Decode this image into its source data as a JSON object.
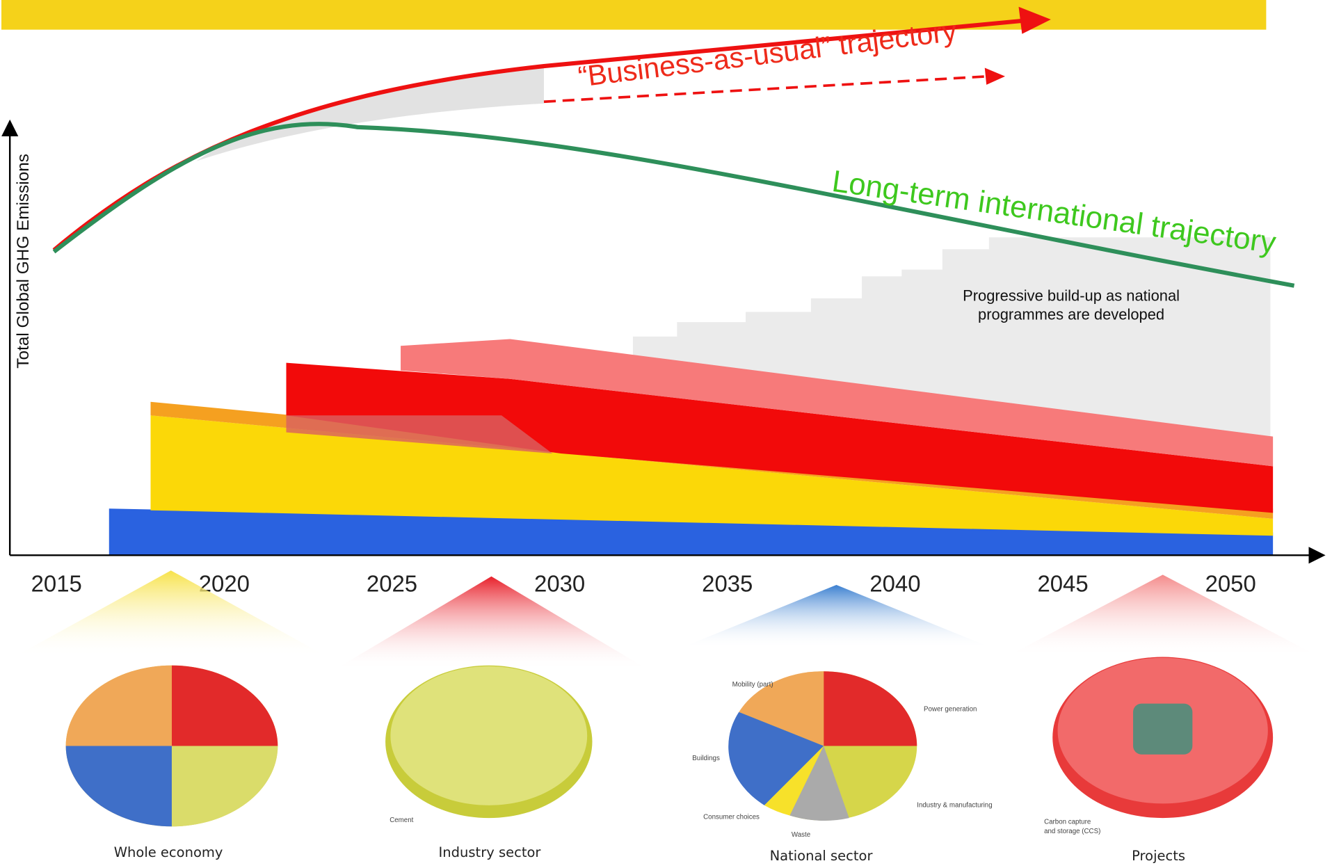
{
  "y_axis_label": "Total Global GHG Emissions",
  "x_axis_labels": [
    "2015",
    "2020",
    "2025",
    "2030",
    "2035",
    "2040",
    "2045",
    "2050"
  ],
  "business_as_usual_label": "“Business-as-usual” trajectory",
  "long_term_label": "Long-term international trajectory",
  "annotation": [
    "Progressive build-up as national",
    "programmes are developed"
  ],
  "panels": [
    {
      "caption": "Whole economy",
      "labels": []
    },
    {
      "caption": "Industry sector",
      "labels": [
        "Cement"
      ]
    },
    {
      "caption": "National sector",
      "labels": [
        "Mobility (part)",
        "Power  generation",
        "Buildings",
        "Industry & manufacturing",
        "Consumer choices",
        "Waste"
      ]
    },
    {
      "caption": "Projects",
      "labels": [
        "Carbon capture",
        "and storage (CCS)"
      ]
    }
  ]
}
